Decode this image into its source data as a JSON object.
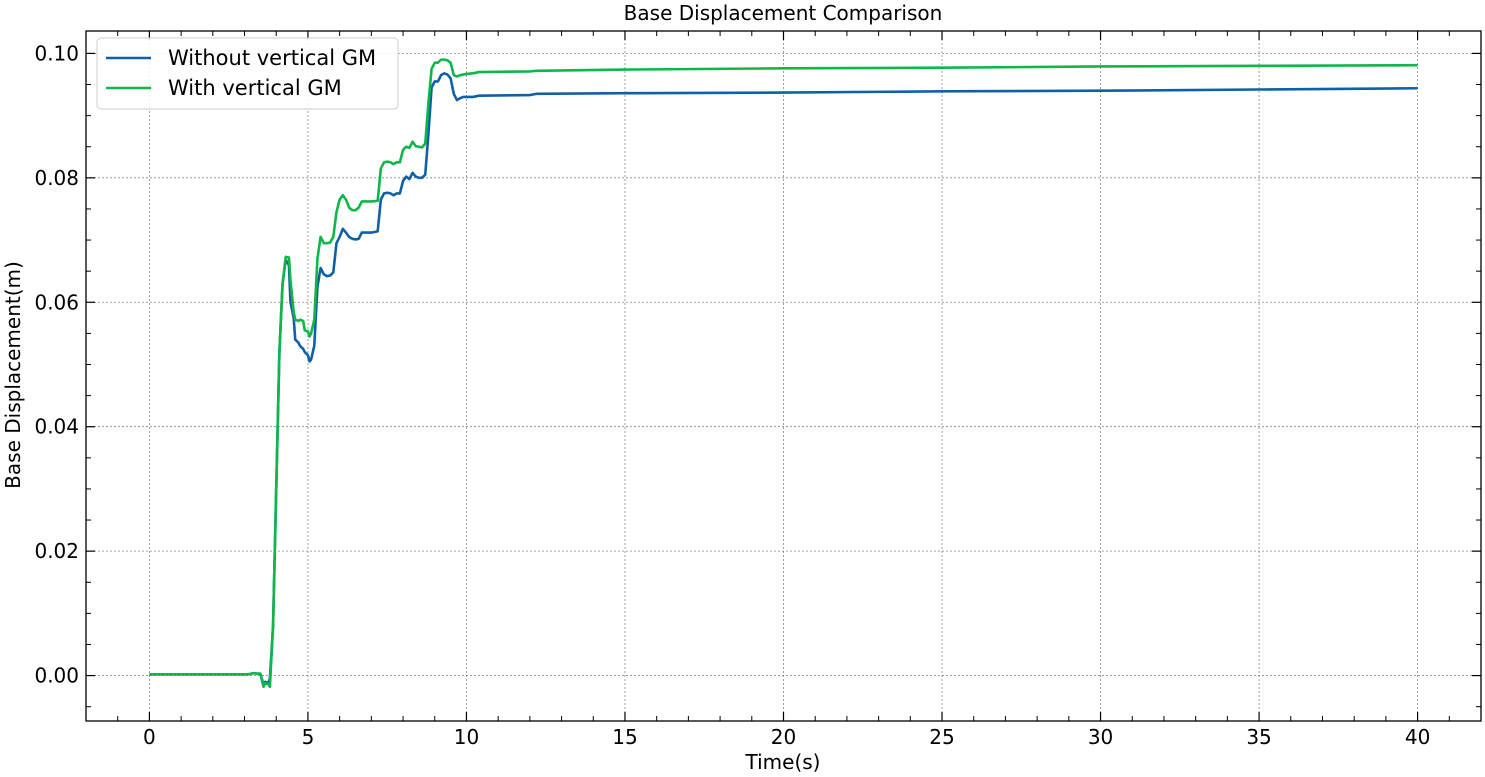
{
  "chart_data": {
    "type": "line",
    "title": "Base Displacement Comparison",
    "xlabel": "Time(s)",
    "ylabel": "Base Displacement(m)",
    "xlim": [
      -2,
      42
    ],
    "ylim": [
      -0.0073,
      0.1036
    ],
    "x_ticks": [
      0,
      5,
      10,
      15,
      20,
      25,
      30,
      35,
      40
    ],
    "x_tick_labels": [
      "0",
      "5",
      "10",
      "15",
      "20",
      "25",
      "30",
      "35",
      "40"
    ],
    "y_ticks": [
      0.0,
      0.02,
      0.04,
      0.06,
      0.08,
      0.1
    ],
    "y_tick_labels": [
      "0.00",
      "0.02",
      "0.04",
      "0.06",
      "0.08",
      "0.10"
    ],
    "grid": true,
    "legend_position": "top-left",
    "series": [
      {
        "name": "Without vertical GM",
        "color": "#1060a8",
        "x": [
          0,
          1,
          2,
          3,
          3.1,
          3.3,
          3.4,
          3.5,
          3.6,
          3.65,
          3.75,
          3.8,
          3.9,
          4.0,
          4.1,
          4.2,
          4.3,
          4.4,
          4.45,
          4.55,
          4.6,
          4.7,
          4.75,
          4.85,
          4.9,
          5.0,
          5.05,
          5.1,
          5.2,
          5.3,
          5.4,
          5.5,
          5.6,
          5.7,
          5.8,
          5.9,
          6.0,
          6.1,
          6.2,
          6.3,
          6.4,
          6.5,
          6.6,
          6.7,
          7.0,
          7.2,
          7.3,
          7.4,
          7.5,
          7.6,
          7.7,
          7.8,
          7.9,
          8.0,
          8.1,
          8.2,
          8.3,
          8.4,
          8.5,
          8.6,
          8.7,
          8.8,
          8.9,
          9.0,
          9.1,
          9.2,
          9.3,
          9.4,
          9.5,
          9.6,
          9.7,
          9.8,
          9.9,
          10.0,
          10.2,
          10.4,
          12.0,
          12.2,
          15,
          20,
          25,
          30,
          35,
          40
        ],
        "y": [
          0.0002,
          0.0002,
          0.0002,
          0.0002,
          0.0002,
          0.0004,
          0.0003,
          0.0003,
          -0.0015,
          -0.001,
          -0.0012,
          -0.0005,
          0.008,
          0.03,
          0.052,
          0.063,
          0.0668,
          0.066,
          0.06,
          0.0575,
          0.054,
          0.0535,
          0.053,
          0.0525,
          0.052,
          0.0515,
          0.0505,
          0.0508,
          0.053,
          0.0625,
          0.0655,
          0.0645,
          0.0642,
          0.0643,
          0.0648,
          0.0695,
          0.0705,
          0.0718,
          0.0712,
          0.0705,
          0.0702,
          0.0701,
          0.0702,
          0.0712,
          0.0712,
          0.0714,
          0.0765,
          0.0775,
          0.0776,
          0.0775,
          0.0772,
          0.0775,
          0.0775,
          0.0795,
          0.0802,
          0.0798,
          0.0808,
          0.0802,
          0.08,
          0.08,
          0.0805,
          0.087,
          0.0945,
          0.0955,
          0.0955,
          0.0965,
          0.0968,
          0.0966,
          0.096,
          0.0935,
          0.0925,
          0.0928,
          0.093,
          0.093,
          0.093,
          0.0932,
          0.0933,
          0.0935,
          0.0936,
          0.0937,
          0.0939,
          0.094,
          0.0942,
          0.0944
        ]
      },
      {
        "name": "With vertical GM",
        "color": "#10b64a",
        "x": [
          0,
          1,
          2,
          3,
          3.1,
          3.3,
          3.4,
          3.5,
          3.6,
          3.65,
          3.75,
          3.8,
          3.9,
          4.0,
          4.1,
          4.2,
          4.3,
          4.4,
          4.45,
          4.55,
          4.6,
          4.7,
          4.75,
          4.85,
          4.9,
          5.0,
          5.05,
          5.1,
          5.2,
          5.3,
          5.4,
          5.5,
          5.6,
          5.7,
          5.8,
          5.9,
          6.0,
          6.1,
          6.2,
          6.3,
          6.4,
          6.5,
          6.6,
          6.7,
          7.0,
          7.2,
          7.3,
          7.4,
          7.5,
          7.6,
          7.7,
          7.8,
          7.9,
          8.0,
          8.1,
          8.2,
          8.3,
          8.4,
          8.5,
          8.6,
          8.7,
          8.8,
          8.9,
          9.0,
          9.1,
          9.2,
          9.3,
          9.4,
          9.5,
          9.6,
          9.7,
          9.8,
          9.9,
          10.0,
          10.2,
          10.4,
          12.0,
          12.2,
          15,
          20,
          25,
          30,
          35,
          40
        ],
        "y": [
          0.0002,
          0.0002,
          0.0002,
          0.0002,
          0.0002,
          0.0004,
          0.0003,
          0.0003,
          -0.0018,
          -0.0012,
          -0.0014,
          -0.0018,
          0.008,
          0.03,
          0.052,
          0.063,
          0.0673,
          0.0672,
          0.0635,
          0.0585,
          0.0572,
          0.057,
          0.0572,
          0.057,
          0.0555,
          0.0553,
          0.0545,
          0.055,
          0.0572,
          0.067,
          0.0705,
          0.0695,
          0.0695,
          0.0696,
          0.0705,
          0.0745,
          0.0765,
          0.0772,
          0.0765,
          0.0752,
          0.0748,
          0.0748,
          0.0752,
          0.0762,
          0.0762,
          0.0763,
          0.0815,
          0.0825,
          0.0826,
          0.0825,
          0.0822,
          0.0825,
          0.0825,
          0.0845,
          0.085,
          0.0848,
          0.0858,
          0.0851,
          0.085,
          0.0849,
          0.0855,
          0.092,
          0.0975,
          0.0985,
          0.0985,
          0.099,
          0.099,
          0.0989,
          0.0985,
          0.0965,
          0.0963,
          0.0965,
          0.0966,
          0.0967,
          0.0968,
          0.097,
          0.0971,
          0.0972,
          0.0974,
          0.0976,
          0.0977,
          0.0979,
          0.098,
          0.0981
        ]
      }
    ]
  }
}
